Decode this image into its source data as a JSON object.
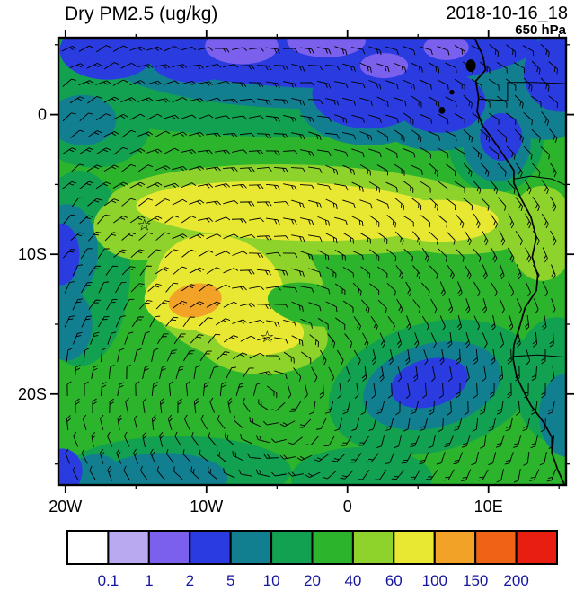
{
  "header": {
    "title": "Dry PM2.5 (ug/kg)",
    "datetime": "2018-10-16_18",
    "level": "650 hPa"
  },
  "chart_data": {
    "type": "heatmap",
    "title": "Dry PM2.5 (ug/kg)",
    "units": "ug/kg",
    "datetime": "2018-10-16_18",
    "pressure_level": "650 hPa",
    "lon_range": [
      -20.5,
      15.5
    ],
    "lat_range": [
      -26.5,
      5.5
    ],
    "x_ticks": [
      {
        "lon": -20,
        "label": "20W"
      },
      {
        "lon": -10,
        "label": "10W"
      },
      {
        "lon": 0,
        "label": "0"
      },
      {
        "lon": 10,
        "label": "10E"
      }
    ],
    "y_ticks": [
      {
        "lat": 0,
        "label": "0"
      },
      {
        "lat": -10,
        "label": "10S"
      },
      {
        "lat": -20,
        "label": "20S"
      }
    ],
    "colorbar": {
      "levels": [
        0.1,
        1,
        2,
        5,
        10,
        20,
        40,
        60,
        100,
        150,
        200
      ],
      "labels": [
        "0.1",
        "1",
        "2",
        "5",
        "10",
        "20",
        "40",
        "60",
        "100",
        "150",
        "200"
      ],
      "colors": [
        "#ffffff",
        "#b9a9f1",
        "#7a60ec",
        "#2a3ce0",
        "#127f91",
        "#12a150",
        "#2cb42c",
        "#8ed32b",
        "#e8e832",
        "#f2a226",
        "#ef6317",
        "#e81f10"
      ],
      "label_color": "#15159b"
    },
    "background_value": 30,
    "regions": [
      {
        "value": 15,
        "ellipses": [
          [
            -4,
            4.2,
            23,
            5.8,
            0
          ],
          [
            -18,
            -0.8,
            4,
            3,
            0
          ],
          [
            10.5,
            -1.8,
            3.4,
            3.8,
            0
          ],
          [
            -17,
            4.8,
            4,
            2.6,
            0
          ],
          [
            -19,
            -11,
            3.6,
            7,
            0
          ],
          [
            6,
            -19.5,
            7.5,
            4.6,
            -15
          ],
          [
            -12,
            -25.5,
            8,
            2.5,
            0
          ],
          [
            1,
            -26,
            5,
            2.2,
            0
          ],
          [
            14.8,
            -19,
            3,
            4.5,
            0
          ]
        ]
      },
      {
        "value": 7,
        "ellipses": [
          [
            -2,
            4.7,
            16,
            4.3,
            0
          ],
          [
            1.5,
            1,
            5,
            3.2,
            0
          ],
          [
            6.3,
            0.8,
            4.8,
            3.4,
            0
          ],
          [
            -18.8,
            -0.4,
            2.4,
            1.8,
            0
          ],
          [
            -19.9,
            -9.8,
            2.2,
            3.4,
            0
          ],
          [
            -19.9,
            -15,
            1.8,
            2.6,
            0
          ],
          [
            6,
            -19.4,
            5,
            3,
            -15
          ],
          [
            -13,
            -26,
            4.5,
            1.8,
            0
          ],
          [
            -17.8,
            -25.8,
            1.8,
            1.5,
            0
          ],
          [
            14,
            2.2,
            4.2,
            4,
            0
          ],
          [
            10.6,
            -2,
            2.4,
            2.8,
            0
          ],
          [
            15.6,
            -21.5,
            2,
            3,
            0
          ]
        ]
      },
      {
        "value": 3,
        "ellipses": [
          [
            -1,
            5.2,
            14.5,
            3.3,
            0
          ],
          [
            1.5,
            1.5,
            4,
            2.5,
            0
          ],
          [
            6.6,
            0.9,
            3.2,
            2.2,
            0
          ],
          [
            -17,
            4.6,
            3.4,
            2.1,
            0
          ],
          [
            -11,
            4,
            3,
            1.7,
            0
          ],
          [
            -20.3,
            -10,
            1.3,
            2.2,
            0
          ],
          [
            5.8,
            -19.2,
            2.8,
            1.7,
            -15
          ],
          [
            -20.2,
            -25.5,
            1.4,
            1.6,
            0
          ],
          [
            15.1,
            3,
            2.6,
            2.8,
            0
          ],
          [
            10.9,
            -1.6,
            1.5,
            1.7,
            0
          ]
        ]
      },
      {
        "value": 1.5,
        "ellipses": [
          [
            -7.5,
            4.9,
            2.6,
            1.3,
            0
          ],
          [
            -1.5,
            5.3,
            2.8,
            1.2,
            0
          ],
          [
            2.6,
            3.5,
            1.7,
            0.9,
            0
          ],
          [
            7,
            4.8,
            1.6,
            0.9,
            0
          ]
        ]
      },
      {
        "value": 50,
        "ellipses": [
          [
            -3,
            -6.8,
            14,
            3.2,
            2
          ],
          [
            8,
            -7.6,
            6,
            2.4,
            0
          ],
          [
            -8,
            -12.5,
            6.5,
            5,
            15
          ],
          [
            -6,
            -16,
            4.6,
            2.6,
            0
          ],
          [
            -14.6,
            -8,
            3.4,
            2.4,
            0
          ],
          [
            13.8,
            -8.5,
            2.4,
            3.4,
            0
          ]
        ]
      },
      {
        "value": 80,
        "ellipses": [
          [
            -4,
            -6.9,
            11,
            2.1,
            2
          ],
          [
            6.5,
            -7.6,
            4.2,
            1.5,
            0
          ],
          [
            -9,
            -12.3,
            4.6,
            3.6,
            20
          ],
          [
            -6.3,
            -15.6,
            3.2,
            1.6,
            0
          ],
          [
            -11,
            -13.2,
            3.4,
            2.2,
            0
          ]
        ]
      },
      {
        "value": 30,
        "ellipses": [
          [
            -2.5,
            -13.6,
            3.2,
            1.5,
            10
          ],
          [
            1.5,
            -13.2,
            3.8,
            1.6,
            0
          ]
        ]
      },
      {
        "value": 120,
        "ellipses": [
          [
            -10.8,
            -13.3,
            1.9,
            1.2,
            -10
          ]
        ]
      }
    ],
    "markers": [
      {
        "symbol": "star",
        "lon": -14.4,
        "lat": -7.9
      },
      {
        "symbol": "star",
        "lon": -5.7,
        "lat": -15.9
      }
    ],
    "coastline": [
      [
        9,
        5.5
      ],
      [
        9.6,
        4.2
      ],
      [
        9.8,
        3.2
      ],
      [
        9.1,
        2.4
      ],
      [
        9.3,
        1.2
      ],
      [
        9.2,
        0.2
      ],
      [
        9.6,
        -0.8
      ],
      [
        10.6,
        -2.2
      ],
      [
        11.8,
        -4
      ],
      [
        11.8,
        -4.9
      ],
      [
        12.3,
        -6
      ],
      [
        13,
        -7.3
      ],
      [
        13.4,
        -8.8
      ],
      [
        13.1,
        -10.2
      ],
      [
        13.5,
        -11.5
      ],
      [
        13.4,
        -12.6
      ],
      [
        12.6,
        -13.8
      ],
      [
        12.2,
        -15.2
      ],
      [
        11.8,
        -16.5
      ],
      [
        11.75,
        -17.5
      ],
      [
        12,
        -18.8
      ],
      [
        12.5,
        -19.8
      ],
      [
        13,
        -20.8
      ],
      [
        13.9,
        -22
      ],
      [
        14.5,
        -23.1
      ],
      [
        14.5,
        -24.2
      ],
      [
        14.9,
        -25.4
      ],
      [
        15.4,
        -26.5
      ],
      [
        15.6,
        -27.2
      ]
    ],
    "borders": [
      [
        [
          9.3,
          1.1
        ],
        [
          11.35,
          1
        ],
        [
          11.35,
          2.3
        ],
        [
          13.2,
          2.3
        ],
        [
          16,
          2.2
        ]
      ],
      [
        [
          11.8,
          -4.6
        ],
        [
          13,
          -4.4
        ],
        [
          14.5,
          -4.6
        ],
        [
          16,
          -5.3
        ]
      ],
      [
        [
          11.75,
          -17.3
        ],
        [
          13.5,
          -17.2
        ],
        [
          16,
          -17.4
        ]
      ]
    ],
    "islands": [
      {
        "lon": 8.75,
        "lat": 3.5,
        "rx": 0.35,
        "ry": 0.45
      },
      {
        "lon": 7.4,
        "lat": 1.6,
        "rx": 0.18,
        "ry": 0.18
      },
      {
        "lon": 6.7,
        "lat": 0.3,
        "rx": 0.22,
        "ry": 0.25
      }
    ],
    "wind_barbs": {
      "circulation_center": {
        "lon": -5.5,
        "lat": -20
      },
      "rotation": "counterclockwise",
      "spacing_px": 19
    }
  }
}
